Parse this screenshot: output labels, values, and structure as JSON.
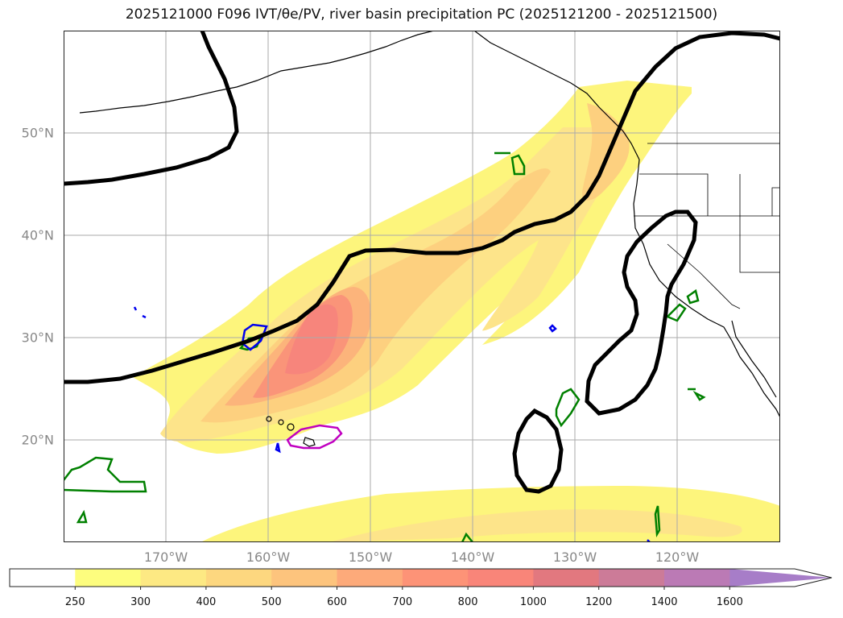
{
  "title": "2025121000 F096 IVT/θe/PV, river basin precipitation PC (2025121200 - 2025121500)",
  "map": {
    "lat_labels": [
      "50°N",
      "40°N",
      "30°N",
      "20°N"
    ],
    "lon_labels": [
      "170°W",
      "160°W",
      "150°W",
      "140°W",
      "130°W",
      "120°W"
    ],
    "lat_values": [
      50,
      40,
      30,
      20
    ],
    "lon_values": [
      -170,
      -160,
      -150,
      -140,
      -130,
      -120
    ],
    "extent": {
      "lon_min": -180,
      "lon_max": -110,
      "lat_min": 10,
      "lat_max": 60
    },
    "grid": true
  },
  "colorbar": {
    "levels": [
      "250",
      "300",
      "400",
      "500",
      "600",
      "700",
      "800",
      "1000",
      "1200",
      "1400",
      "1600"
    ],
    "colors": [
      "#ffffff",
      "#fdfd7e",
      "#fde983",
      "#fdd77f",
      "#fdc47d",
      "#fdaa7a",
      "#fd9377",
      "#f98579",
      "#e2787f",
      "#cc7b98",
      "#bb7ab5",
      "#a77dc8"
    ],
    "extend": "max"
  },
  "colors": {
    "ivt_fill_1": "#fdf57c",
    "ivt_fill_2": "#fde48a",
    "ivt_fill_3": "#fdd07f",
    "ivt_fill_4": "#fcb47b",
    "ivt_fill_5": "#fa9479",
    "ivt_fill_6": "#f7857c",
    "contour_black": "#000000",
    "contour_green": "#008000",
    "contour_blue": "#0000ee",
    "contour_magenta": "#c000c0",
    "grid": "#aaaaaa",
    "coastline": "#000000"
  }
}
